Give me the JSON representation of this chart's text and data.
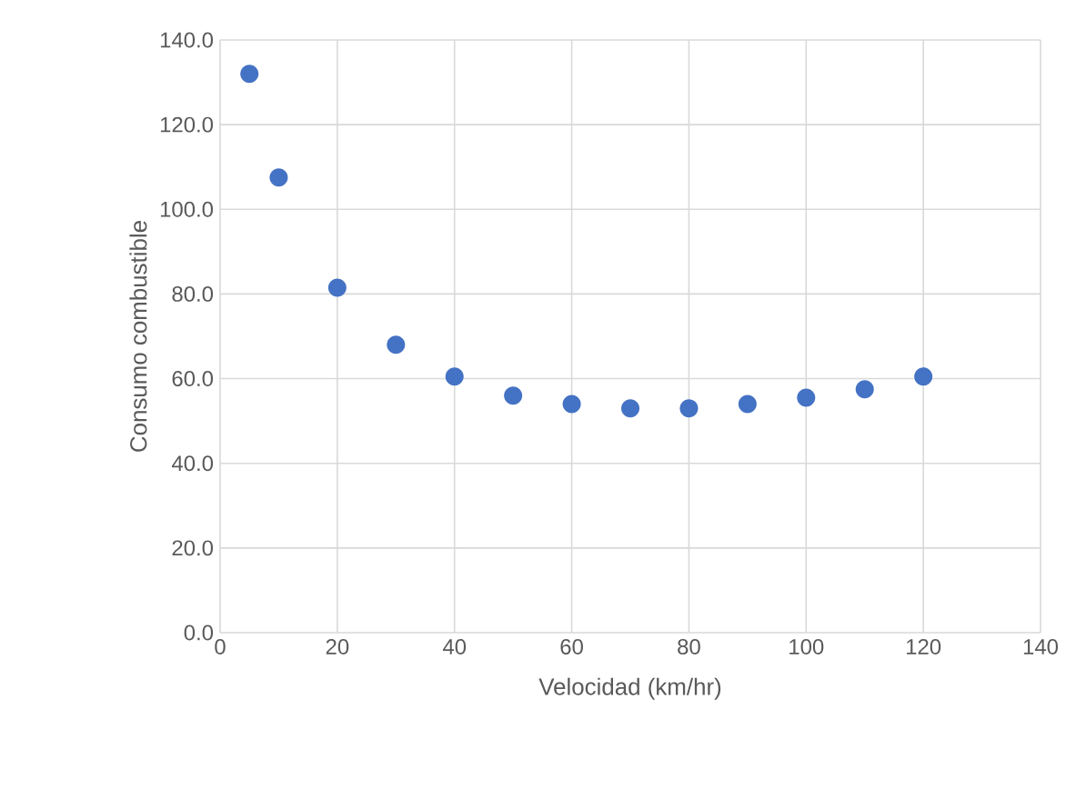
{
  "chart_data": {
    "type": "scatter",
    "xlabel": "Velocidad (km/hr)",
    "ylabel": "Consumo combustible",
    "x": [
      5,
      10,
      20,
      30,
      40,
      50,
      60,
      70,
      80,
      90,
      100,
      110,
      120
    ],
    "values": [
      132,
      107.5,
      81.5,
      68,
      60.5,
      56,
      54,
      53,
      53,
      54,
      55.5,
      57.5,
      60.5
    ],
    "color": "#4472c4",
    "marker": "circle",
    "grid": true,
    "xlim": [
      0,
      140
    ],
    "xticks": [
      0,
      20,
      40,
      60,
      80,
      100,
      120,
      140
    ],
    "ylim": [
      0,
      140
    ],
    "yticks": [
      {
        "value": 0,
        "label": "0.0"
      },
      {
        "value": 20,
        "label": "20.0"
      },
      {
        "value": 40,
        "label": "40.0"
      },
      {
        "value": 60,
        "label": "60.0"
      },
      {
        "value": 80,
        "label": "80.0"
      },
      {
        "value": 100,
        "label": "100.0"
      },
      {
        "value": 120,
        "label": "120.0"
      },
      {
        "value": 140,
        "label": "140.0"
      }
    ]
  }
}
